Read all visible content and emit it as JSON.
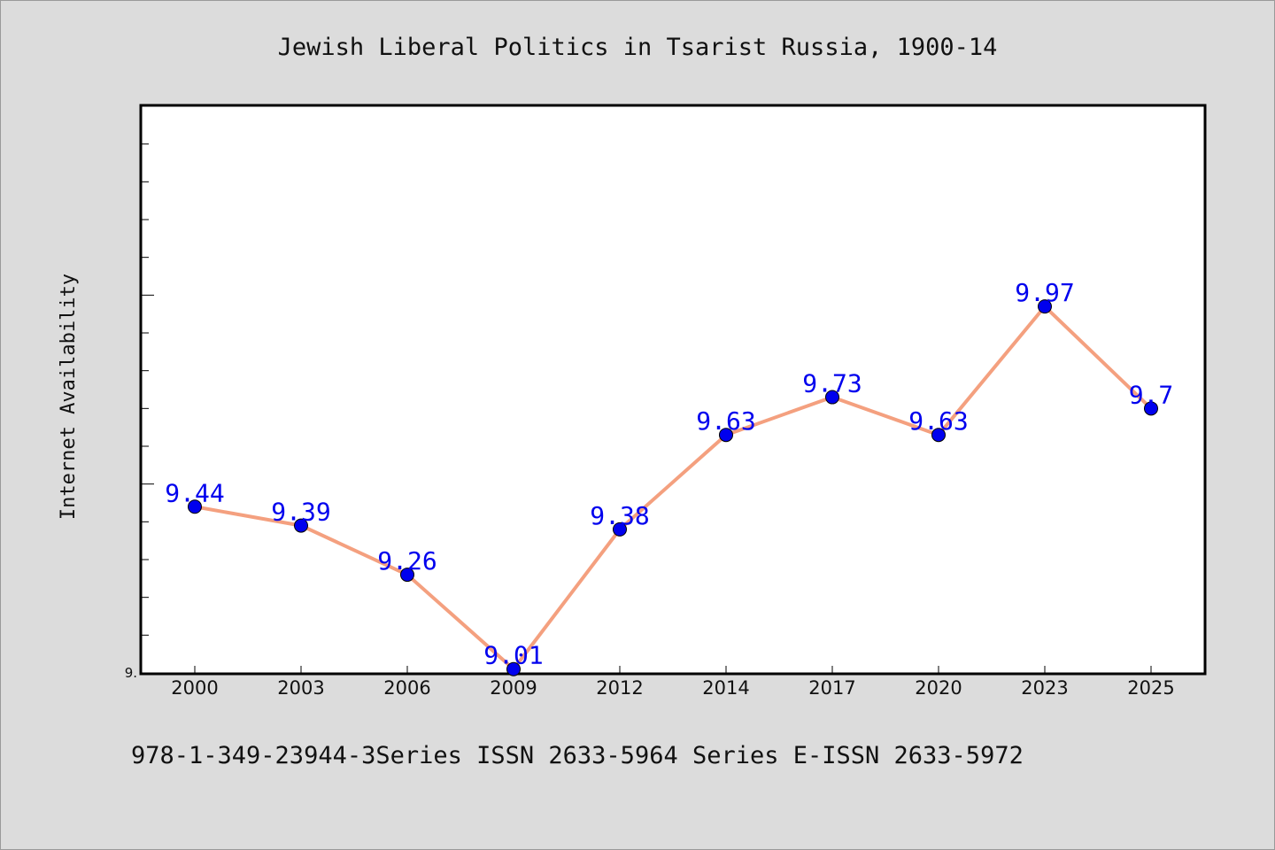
{
  "chart_data": {
    "type": "line",
    "title": "Jewish Liberal Politics in Tsarist Russia, 1900-14",
    "xlabel": "",
    "ylabel": "Internet Availability",
    "categories": [
      "2000",
      "2003",
      "2006",
      "2009",
      "2012",
      "2014",
      "2017",
      "2020",
      "2023",
      "2025"
    ],
    "series": [
      {
        "values": [
          9.44,
          9.39,
          9.26,
          9.01,
          9.38,
          9.63,
          9.73,
          9.63,
          9.97,
          9.7
        ],
        "labels": [
          "9.44",
          "9.39",
          "9.26",
          "9.01",
          "9.38",
          "9.63",
          "9.73",
          "9.63",
          "9.97",
          "9.7"
        ],
        "line_color": "#f4a07f",
        "marker_color": "#0000ee"
      }
    ],
    "ylim": [
      9.0,
      10.5
    ],
    "ytick_labels": [
      "9."
    ],
    "grid": false,
    "legend": "none"
  },
  "footer": {
    "text": "978-1-349-23944-3Series ISSN 2633-5964 Series E-ISSN 2633-5972"
  },
  "colors": {
    "background": "#dcdcdc",
    "plot_background": "#ffffff"
  }
}
